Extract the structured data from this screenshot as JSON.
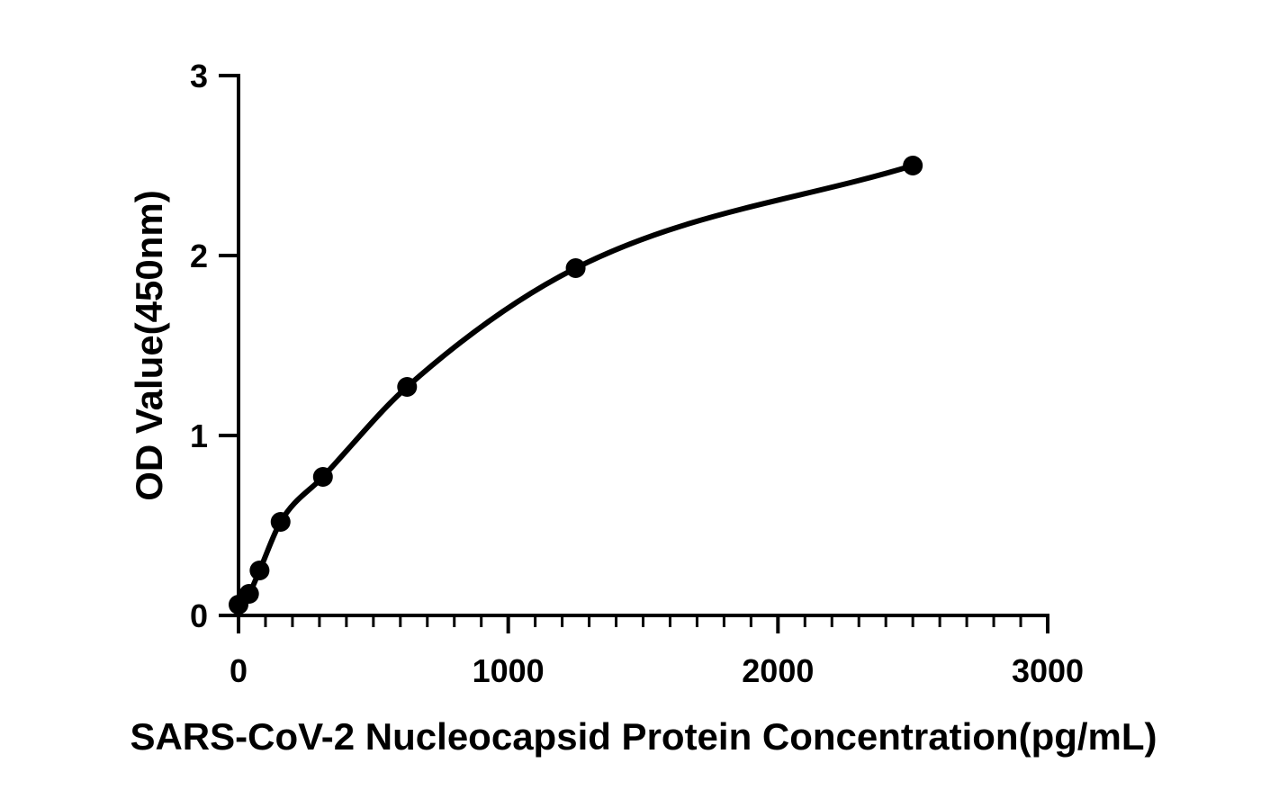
{
  "chart_data": {
    "type": "scatter",
    "title": "",
    "xlabel": "SARS-CoV-2 Nucleocapsid Protein Concentration(pg/mL)",
    "ylabel": "OD Value(450nm)",
    "xlim": [
      0,
      3000
    ],
    "ylim": [
      0,
      3
    ],
    "x_ticks": [
      "0",
      "1000",
      "2000",
      "3000"
    ],
    "y_ticks": [
      "0",
      "1",
      "2",
      "3"
    ],
    "grid": false,
    "legend": "none",
    "series": [
      {
        "points": [
          {
            "x": 0,
            "y": 0.06
          },
          {
            "x": 39,
            "y": 0.12
          },
          {
            "x": 78,
            "y": 0.25
          },
          {
            "x": 156,
            "y": 0.52
          },
          {
            "x": 313,
            "y": 0.77
          },
          {
            "x": 625,
            "y": 1.27
          },
          {
            "x": 1250,
            "y": 1.93
          },
          {
            "x": 2500,
            "y": 2.5
          }
        ],
        "fit_curve": true
      }
    ]
  }
}
